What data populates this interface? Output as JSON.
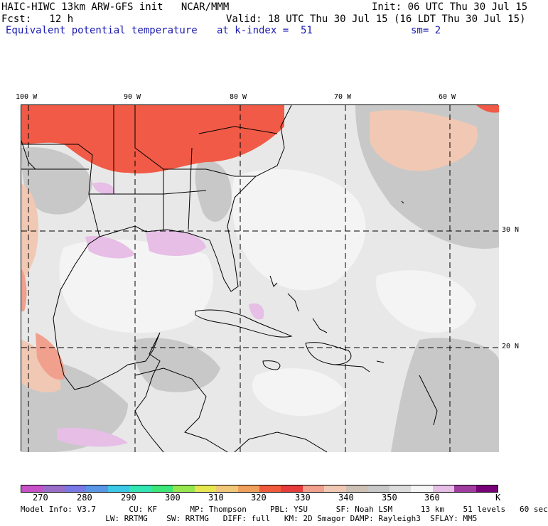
{
  "header": {
    "title_left": "HAIC-HIWC 13km ARW-GFS init   NCAR/MMM",
    "init": "Init: 06 UTC Thu 30 Jul 15",
    "fcst": "Fcst:   12 h",
    "valid": "Valid: 18 UTC Thu 30 Jul 15 (16 LDT Thu 30 Jul 15)",
    "field": "Equivalent potential temperature",
    "level": "at k-index =  51",
    "smooth": "sm= 2"
  },
  "axes": {
    "lon_labels": [
      "100 W",
      "90 W",
      "80 W",
      "70 W",
      "60 W"
    ],
    "lat_labels": [
      "30 N",
      "20 N"
    ]
  },
  "colorbar": {
    "colors": [
      "#c850c8",
      "#9a6ec8",
      "#7878e6",
      "#5a96e6",
      "#3cc8e6",
      "#32e6b4",
      "#3ce678",
      "#96e650",
      "#e6e650",
      "#f0c878",
      "#f0a05a",
      "#f05a3c",
      "#e63c3c",
      "#f0a08c",
      "#f0c8b4",
      "#cdc0b4",
      "#c8c8c8",
      "#dcdcdc",
      "#f5f5f5",
      "#e6bee6",
      "#a03ca0",
      "#780078"
    ],
    "tick_labels": [
      "270",
      "280",
      "290",
      "300",
      "310",
      "320",
      "330",
      "340",
      "350",
      "360"
    ],
    "unit": "K"
  },
  "footer": {
    "line1": "Model Info: V3.7       CU: KF       MP: Thompson     PBL: YSU      SF: Noah LSM      13 km    51 levels   60 sec",
    "line2": "                  LW: RRTMG    SW: RRTMG   DIFF: full   KM: 2D Smagor DAMP: Rayleigh3  SFLAY: MM5"
  }
}
